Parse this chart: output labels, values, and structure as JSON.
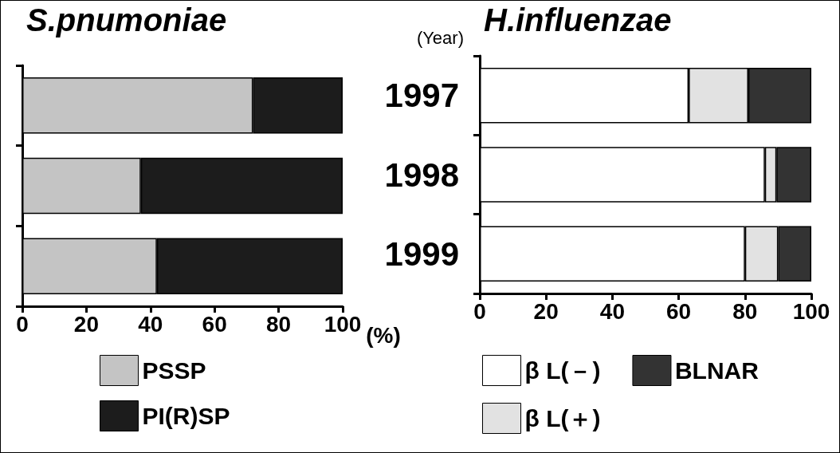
{
  "chart_data": [
    {
      "type": "bar",
      "title": "S.pnumoniae",
      "orientation": "horizontal",
      "stacked": true,
      "categories": [
        "1997",
        "1998",
        "1999"
      ],
      "xlabel": "(%)",
      "xlim": [
        0,
        100
      ],
      "xticks": [
        0,
        20,
        40,
        60,
        80,
        100
      ],
      "tick_labels": "x",
      "legend": "bottom",
      "grid": false,
      "series": [
        {
          "name": "PSSP",
          "color": "#c4c4c4",
          "values": [
            72,
            37,
            42
          ]
        },
        {
          "name": "PI(R)SP",
          "color": "#1c1c1c",
          "values": [
            28,
            63,
            58
          ]
        }
      ]
    },
    {
      "type": "bar",
      "title": "H.influenzae",
      "orientation": "horizontal",
      "stacked": true,
      "categories": [
        "1997",
        "1998",
        "1999"
      ],
      "ylabel": "(Year)",
      "xlim": [
        0,
        100
      ],
      "xticks": [
        0,
        20,
        40,
        60,
        80,
        100
      ],
      "legend": "bottom",
      "grid": false,
      "series": [
        {
          "name": "β L(－)",
          "color": "#ffffff",
          "values": [
            63,
            86,
            80
          ]
        },
        {
          "name": "β L(＋)",
          "color": "#e2e2e2",
          "values": [
            18,
            3.5,
            10
          ]
        },
        {
          "name": "BLNAR",
          "color": "#333333",
          "values": [
            19,
            10.5,
            10
          ]
        }
      ]
    }
  ]
}
